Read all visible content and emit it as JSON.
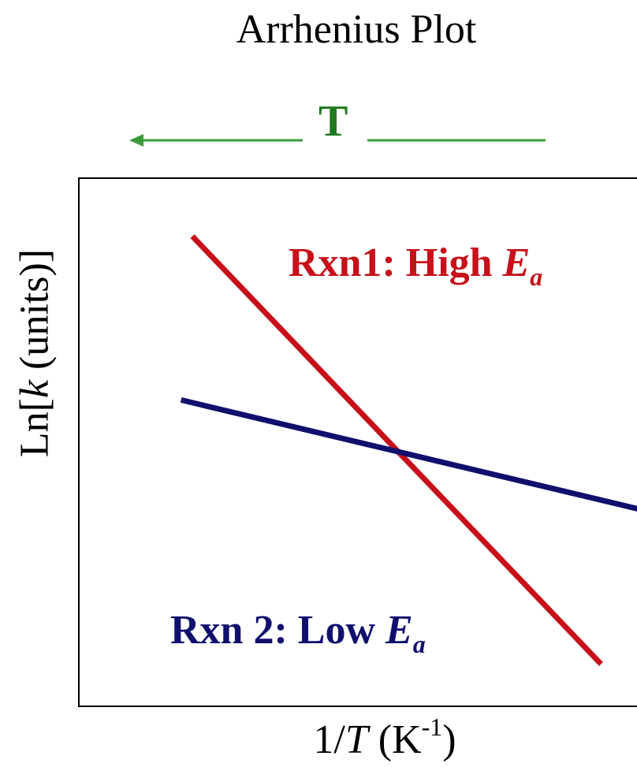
{
  "chart_data": {
    "type": "line",
    "title": "Arrhenius Plot",
    "direction_indicator": {
      "label": "T",
      "arrow": "left",
      "color": "#1f7a1f"
    },
    "xlabel": {
      "prefix": "1/",
      "var": "T",
      "unit_open": " (K",
      "sup": "-1",
      "unit_close": ")"
    },
    "ylabel": {
      "prefix": "Ln[",
      "var": "k",
      "suffix": " (units)]"
    },
    "xlim": [
      0,
      1
    ],
    "ylim": [
      0,
      1
    ],
    "ticks": "none",
    "grid": false,
    "series": [
      {
        "name": "Rxn1: High Ea",
        "label_text": "Rxn1: High ",
        "label_var": "E",
        "label_sub": "a",
        "color": "#c8101a",
        "points": [
          [
            0.2,
            0.89
          ],
          [
            0.92,
            0.08
          ]
        ]
      },
      {
        "name": "Rxn 2: Low Ea",
        "label_text": "Rxn 2: Low ",
        "label_var": "E",
        "label_sub": "a",
        "color": "#0f0f6e",
        "points": [
          [
            0.18,
            0.58
          ],
          [
            1.0,
            0.37
          ]
        ]
      }
    ]
  }
}
